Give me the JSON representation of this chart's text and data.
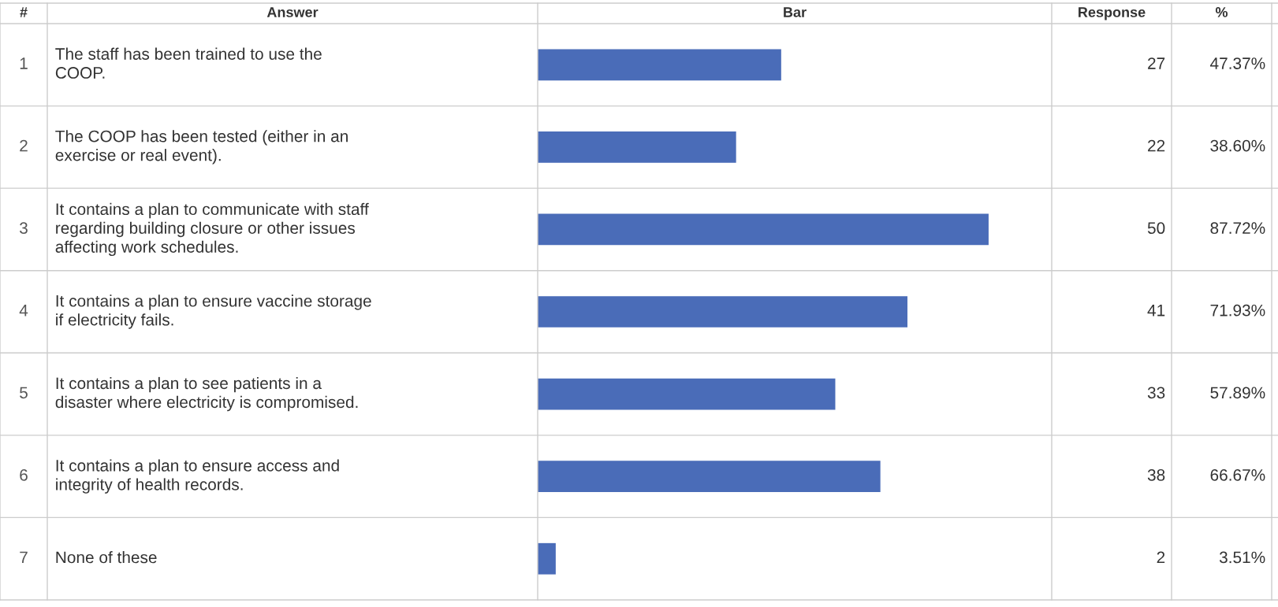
{
  "chart_data": {
    "type": "bar",
    "orientation": "horizontal",
    "color": "#4a6cb8",
    "xlim": [
      0,
      57
    ],
    "data_labels": true,
    "categories": [
      "The staff has been trained to use the\nCOOP.",
      "The COOP has been tested (either in an\nexercise or real event).",
      "It contains a plan to communicate with staff\nregarding building closure or other issues\naffecting work schedules.",
      "It contains a plan to ensure vaccine storage\nif electricity fails.",
      "It contains a plan to see patients in a\ndisaster where electricity is compromised.",
      "It contains a plan to ensure access and\nintegrity of health records.",
      "None of these"
    ],
    "values": [
      27,
      22,
      50,
      41,
      33,
      38,
      2
    ],
    "annotations": [
      "#",
      "Answer",
      "Bar",
      "Response",
      "%",
      "1",
      "2",
      "3",
      "4",
      "5",
      "6",
      "7",
      "47.37%",
      "38.60%",
      "87.72%",
      "71.93%",
      "57.89%",
      "66.67%",
      "3.51%"
    ]
  }
}
